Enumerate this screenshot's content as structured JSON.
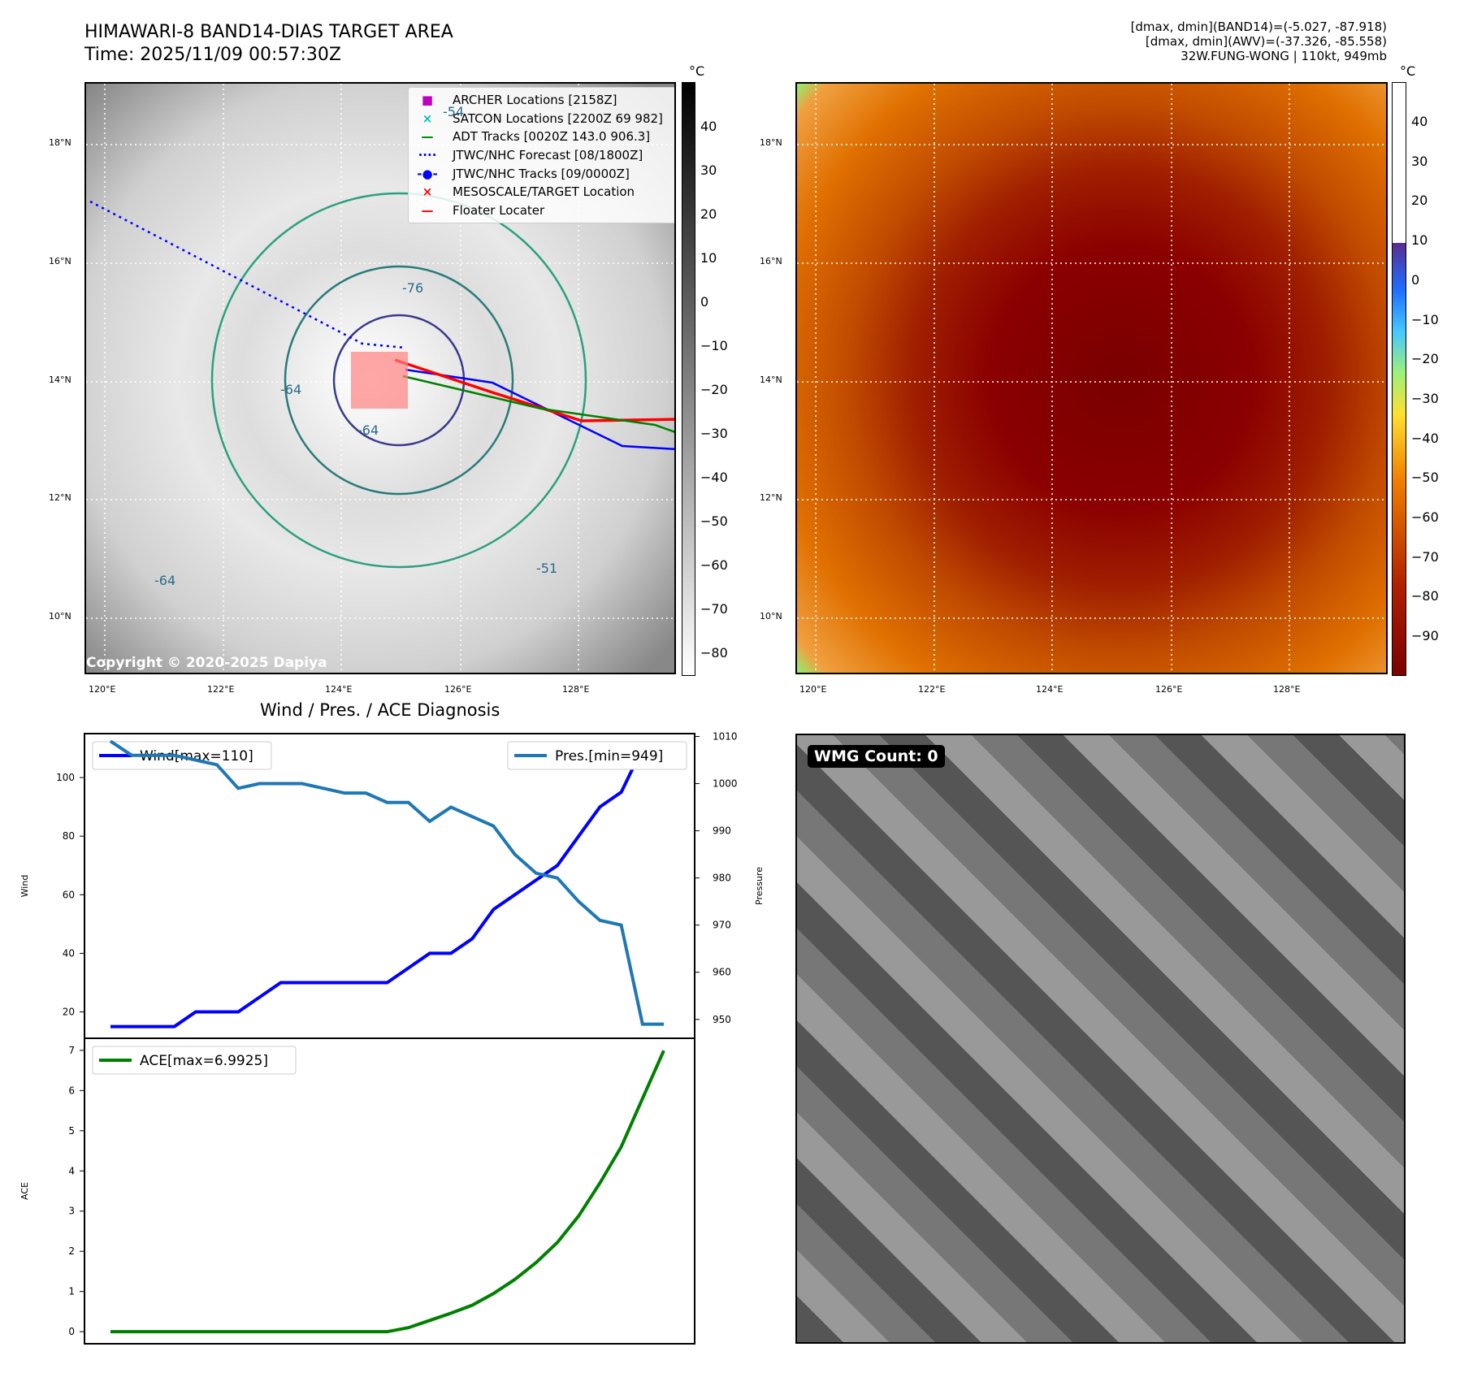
{
  "header": {
    "title": "HIMAWARI-8 BAND14-DIAS TARGET AREA",
    "time": "Time: 2025/11/09 00:57:30Z",
    "info1": "[dmax, dmin](BAND14)=(-5.027, -87.918)",
    "info2": "[dmax, dmin](AWV)=(-37.326, -85.558)",
    "info3": "32W.FUNG-WONG | 110kt, 949mb"
  },
  "maps": {
    "lat_labels": [
      "18°N",
      "16°N",
      "14°N",
      "12°N",
      "10°N"
    ],
    "lon_labels": [
      "120°E",
      "122°E",
      "124°E",
      "126°E",
      "128°E"
    ],
    "unit": "°C",
    "copyright": "Copyright © 2020-2025 Dapiya",
    "cb_left": [
      "40",
      "30",
      "20",
      "10",
      "0",
      "−10",
      "−20",
      "−30",
      "−40",
      "−50",
      "−60",
      "−70",
      "−80"
    ],
    "cb_right": [
      "40",
      "30",
      "20",
      "10",
      "0",
      "−10",
      "−20",
      "−30",
      "−40",
      "−50",
      "−60",
      "−70",
      "−80",
      "−90"
    ],
    "contour_labels": [
      "-54",
      "-76",
      "-64",
      "-64",
      "-64",
      "-51"
    ]
  },
  "legend": [
    {
      "marker": "■",
      "color": "#c000c0",
      "label": "ARCHER Locations [2158Z]"
    },
    {
      "marker": "×",
      "color": "#00c0c0",
      "label": "SATCON Locations [2200Z 69 982]"
    },
    {
      "marker": "—",
      "color": "#008000",
      "label": "ADT Tracks [0020Z 143.0 906.3]"
    },
    {
      "marker": "····",
      "color": "#0000ff",
      "label": "JTWC/NHC Forecast [08/1800Z]"
    },
    {
      "marker": "-●-",
      "color": "#0000ff",
      "label": "JTWC/NHC Tracks [09/0000Z]"
    },
    {
      "marker": "×",
      "color": "#ff0000",
      "label": "MESOSCALE/TARGET Location"
    },
    {
      "marker": "—",
      "color": "#ff0000",
      "label": "Floater Locater"
    }
  ],
  "wmg": {
    "label": "WMG Count: 0"
  },
  "chart_data": [
    {
      "type": "line",
      "title": "Wind / Pres. / ACE Diagnosis",
      "ylabel": "Wind",
      "y2label": "Pressure",
      "ylim": [
        11,
        115
      ],
      "y2lim": [
        946,
        1010.6
      ],
      "yticks": [
        20,
        40,
        60,
        80,
        100
      ],
      "y2ticks": [
        950,
        960,
        970,
        980,
        990,
        1000,
        1010
      ],
      "series": [
        {
          "name": "Wind[max=110]",
          "axis": "left",
          "color": "#0000ff",
          "values": [
            15,
            15,
            15,
            15,
            20,
            20,
            20,
            25,
            30,
            30,
            30,
            30,
            30,
            30,
            35,
            40,
            40,
            45,
            55,
            60,
            65,
            70,
            80,
            90,
            95,
            110,
            110
          ]
        },
        {
          "name": "Pres.[min=949]",
          "axis": "right",
          "color": "#1f77b4",
          "values": [
            1009,
            1006,
            1006,
            1006,
            1005,
            1004,
            999,
            1000,
            1000,
            1000,
            999,
            998,
            998,
            996,
            996,
            992,
            995,
            993,
            991,
            985,
            981,
            980,
            975,
            971,
            970,
            949,
            949
          ]
        }
      ]
    },
    {
      "type": "line",
      "ylabel": "ACE",
      "ylim": [
        -0.3,
        7.3
      ],
      "yticks": [
        0,
        1,
        2,
        3,
        4,
        5,
        6,
        7
      ],
      "series": [
        {
          "name": "ACE[max=6.9925]",
          "color": "#008000",
          "values": [
            0,
            0,
            0,
            0,
            0,
            0,
            0,
            0,
            0,
            0,
            0,
            0,
            0,
            0,
            0.1,
            0.28,
            0.46,
            0.66,
            0.95,
            1.3,
            1.72,
            2.22,
            2.88,
            3.7,
            4.6,
            5.8,
            6.9925
          ]
        }
      ]
    }
  ]
}
